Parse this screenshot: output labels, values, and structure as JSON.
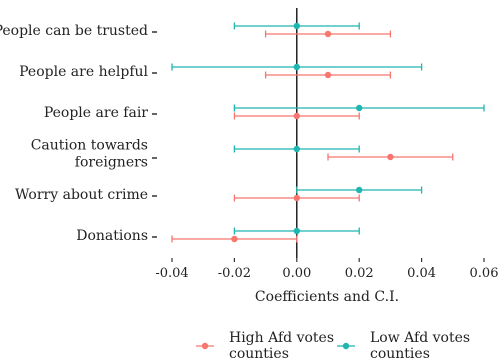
{
  "chart_data": {
    "type": "dot-whisker",
    "xlabel": "Coefficients and C.I.",
    "xlim": [
      -0.045,
      0.06
    ],
    "xticks": [
      -0.04,
      -0.02,
      0.0,
      0.02,
      0.04,
      0.06
    ],
    "xtick_labels": [
      "-0.04",
      "-0.02",
      "0.00",
      "0.02",
      "0.04",
      "0.06"
    ],
    "reference_line_x": 0,
    "grid": false,
    "legend_position": "bottom",
    "categories": [
      [
        "People can be trusted"
      ],
      [
        "People are helpful"
      ],
      [
        "People are fair"
      ],
      [
        "Caution towards",
        "foreigners"
      ],
      [
        "Worry about crime"
      ],
      [
        "Donations"
      ]
    ],
    "series": [
      {
        "name": [
          "High Afd votes",
          "counties"
        ],
        "color": "#F8766D",
        "points": [
          {
            "estimate": 0.01,
            "low": -0.01,
            "high": 0.03
          },
          {
            "estimate": 0.01,
            "low": -0.01,
            "high": 0.03
          },
          {
            "estimate": 0.0,
            "low": -0.02,
            "high": 0.02
          },
          {
            "estimate": 0.03,
            "low": 0.01,
            "high": 0.05
          },
          {
            "estimate": 0.0,
            "low": -0.02,
            "high": 0.02
          },
          {
            "estimate": -0.02,
            "low": -0.04,
            "high": 0.0
          }
        ]
      },
      {
        "name": [
          "Low Afd votes",
          "counties"
        ],
        "color": "#1FB5B0",
        "points": [
          {
            "estimate": 0.0,
            "low": -0.02,
            "high": 0.02
          },
          {
            "estimate": 0.0,
            "low": -0.04,
            "high": 0.04
          },
          {
            "estimate": 0.02,
            "low": -0.02,
            "high": 0.06
          },
          {
            "estimate": 0.0,
            "low": -0.02,
            "high": 0.02
          },
          {
            "estimate": 0.02,
            "low": 0.0,
            "high": 0.04
          },
          {
            "estimate": 0.0,
            "low": -0.02,
            "high": 0.02
          }
        ]
      }
    ]
  }
}
